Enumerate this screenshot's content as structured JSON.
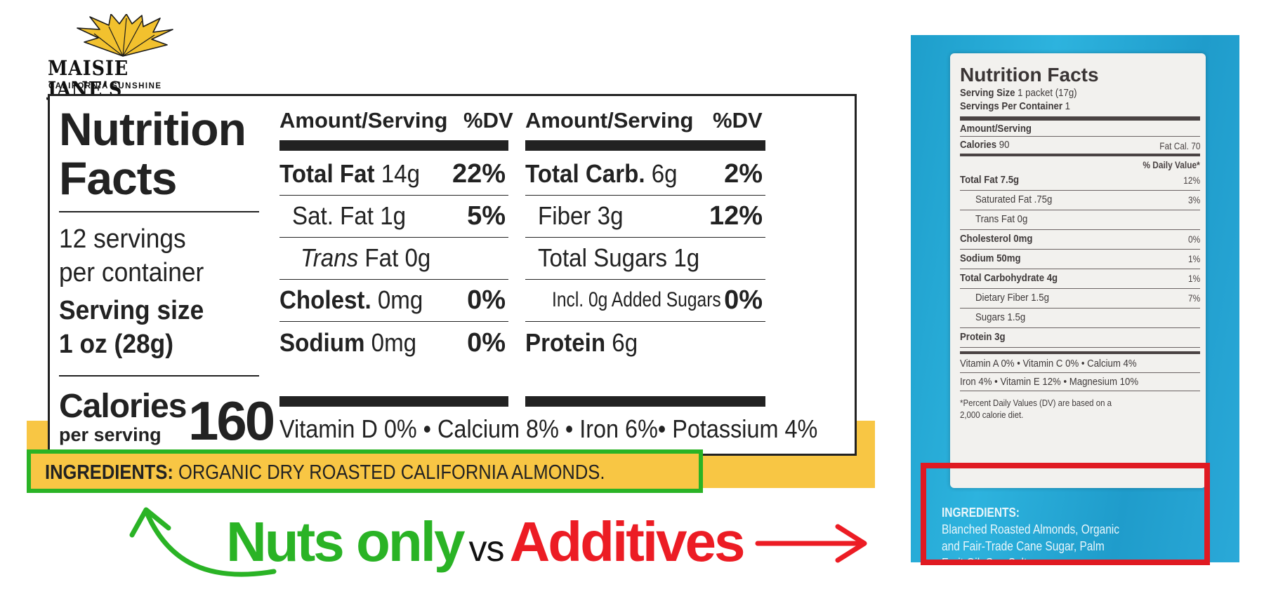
{
  "brand": {
    "name": "MAISIE JANE'S",
    "tagline": "CALIFORNIA SUNSHINE"
  },
  "left_label": {
    "title_line1": "Nutrition",
    "title_line2": "Facts",
    "servings_line1": "12 servings",
    "servings_line2": "per container",
    "serving_size_label": "Serving size",
    "serving_size_value": "1 oz (28g)",
    "calories_label": "Calories",
    "calories_sub": "per serving",
    "calories_value": "160",
    "column_header_amount": "Amount/Serving",
    "column_header_dv": "%DV",
    "left_column": [
      {
        "name": "Total Fat",
        "amount": "14g",
        "dv": "22%"
      },
      {
        "name": "Sat. Fat",
        "amount": "1g",
        "dv": "5%"
      },
      {
        "name": "Trans",
        "amount": "Fat 0g",
        "dv": ""
      },
      {
        "name": "Cholest.",
        "amount": "0mg",
        "dv": "0%"
      },
      {
        "name": "Sodium",
        "amount": "0mg",
        "dv": "0%"
      }
    ],
    "right_column": [
      {
        "name": "Total Carb.",
        "amount": "6g",
        "dv": "2%"
      },
      {
        "name": "Fiber",
        "amount": "3g",
        "dv": "12%"
      },
      {
        "name": "Total Sugars",
        "amount": "1g",
        "dv": ""
      },
      {
        "name": "Incl. 0g Added Sugars",
        "amount": "",
        "dv": "0%"
      },
      {
        "name": "Protein",
        "amount": "6g",
        "dv": ""
      }
    ],
    "vitamins": "Vitamin D 0% • Calcium 8% • Iron 6%• Potassium 4%"
  },
  "left_ingredients": {
    "label": "INGREDIENTS:",
    "text": "ORGANIC DRY ROASTED CALIFORNIA ALMONDS."
  },
  "caption": {
    "left": "Nuts only",
    "middle": "vs",
    "right": "Additives"
  },
  "right_label": {
    "title": "Nutrition Facts",
    "serving_size_label": "Serving Size",
    "serving_size_value": "1 packet (17g)",
    "servings_per_container_label": "Servings Per Container",
    "servings_per_container_value": "1",
    "amount_per_serving": "Amount/Serving",
    "calories_label": "Calories",
    "calories_value": "90",
    "fat_cal": "Fat Cal. 70",
    "daily_value_header": "% Daily Value*",
    "rows": [
      {
        "name": "Total Fat 7.5g",
        "dv": "12%"
      },
      {
        "name": "Saturated Fat .75g",
        "dv": "3%"
      },
      {
        "name": "Trans Fat 0g",
        "dv": ""
      },
      {
        "name": "Cholesterol 0mg",
        "dv": "0%"
      },
      {
        "name": "Sodium 50mg",
        "dv": "1%"
      },
      {
        "name": "Total Carbohydrate 4g",
        "dv": "1%"
      },
      {
        "name": "Dietary Fiber 1.5g",
        "dv": "7%"
      },
      {
        "name": "Sugars 1.5g",
        "dv": ""
      },
      {
        "name": "Protein 3g",
        "dv": ""
      }
    ],
    "vitamins_line1": "Vitamin A 0% • Vitamin C 0% • Calcium 4%",
    "vitamins_line2": "Iron 4% • Vitamin E 12% • Magnesium 10%",
    "footnote_line1": "*Percent Daily Values (DV) are based on a",
    "footnote_line2": "2,000 calorie diet.",
    "ingredients_label": "INGREDIENTS:",
    "ingredients_line1": "Blanched Roasted Almonds, Organic",
    "ingredients_line2": "and Fair-Trade Cane Sugar, Palm",
    "ingredients_line3": "Fruit Oil, Sea Salt."
  },
  "colors": {
    "green": "#2ab325",
    "red": "#ec1c24",
    "yellow": "#f8c644",
    "packet_blue": "#23a8d4"
  }
}
